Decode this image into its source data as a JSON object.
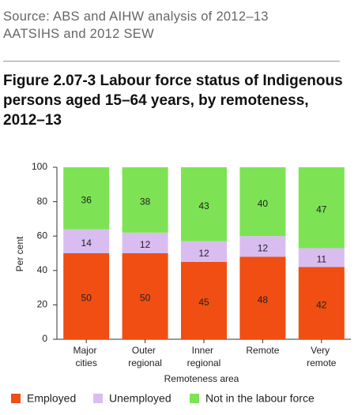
{
  "chart_data": {
    "type": "stacked_bar",
    "source": "Source: ABS and AIHW analysis of 2012–13 AATSIHS and 2012 SEW",
    "title": "Figure 2.07-3 Labour force status of Indigenous persons aged 15–64 years, by remoteness, 2012–13",
    "y_label": "Per cent",
    "x_label": "Remoteness area",
    "categories": [
      "Major cities",
      "Outer regional",
      "Inner regional",
      "Remote",
      "Very remote"
    ],
    "series": [
      {
        "name": "Employed",
        "color": "#f04e12",
        "values": [
          50,
          50,
          45,
          48,
          42
        ]
      },
      {
        "name": "Unemployed",
        "color": "#d9bdf0",
        "values": [
          14,
          12,
          12,
          12,
          11
        ]
      },
      {
        "name": "Not in the labour force",
        "color": "#7de354",
        "values": [
          36,
          38,
          43,
          40,
          47
        ]
      }
    ],
    "ylim": [
      0,
      100
    ],
    "yticks": [
      0,
      20,
      40,
      60,
      80,
      100
    ],
    "legend": "bottom"
  }
}
